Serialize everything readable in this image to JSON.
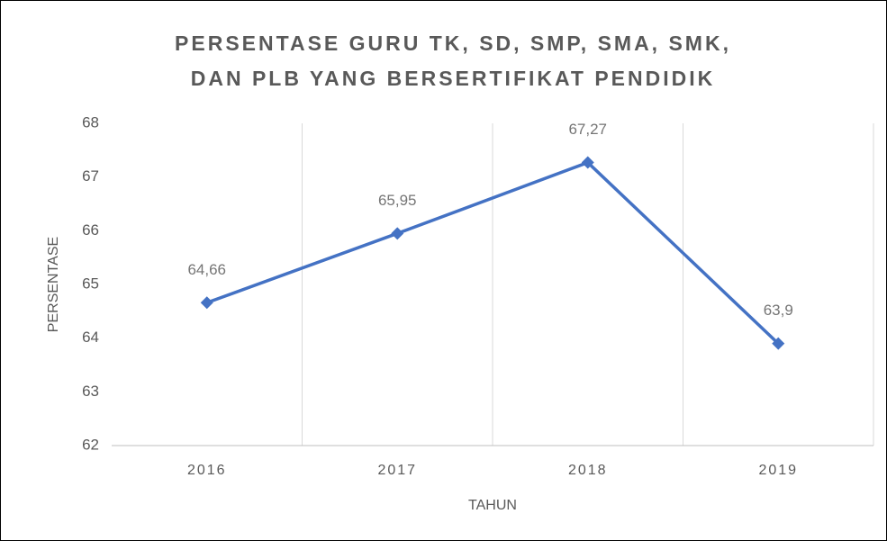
{
  "chart_data": {
    "type": "line",
    "title": [
      "PERSENTASE GURU TK, SD, SMP, SMA, SMK,",
      "DAN PLB YANG BERSERTIFIKAT PENDIDIK"
    ],
    "x_label": "TAHUN",
    "y_label": "PERSENTASE",
    "categories": [
      "2016",
      "2017",
      "2018",
      "2019"
    ],
    "series": [
      {
        "name": "PERSENTASE",
        "color": "#4472c4",
        "values": [
          64.66,
          65.95,
          67.27,
          63.9
        ],
        "value_labels": [
          "64,66",
          "65,95",
          "67,27",
          "63,9"
        ]
      }
    ],
    "ylim": [
      62,
      68
    ],
    "yticks": [
      62,
      63,
      64,
      65,
      66,
      67,
      68
    ],
    "grid": "vertical",
    "legend": false
  }
}
